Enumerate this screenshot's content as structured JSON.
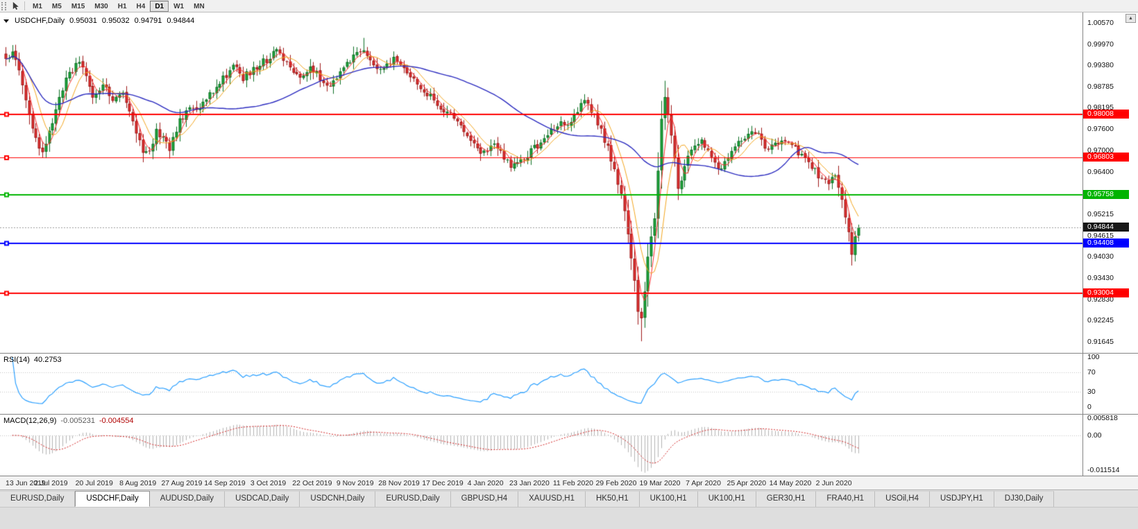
{
  "toolbar": {
    "timeframes": [
      {
        "label": "M1",
        "active": false
      },
      {
        "label": "M5",
        "active": false
      },
      {
        "label": "M15",
        "active": false
      },
      {
        "label": "M30",
        "active": false
      },
      {
        "label": "H1",
        "active": false
      },
      {
        "label": "H4",
        "active": false
      },
      {
        "label": "D1",
        "active": true
      },
      {
        "label": "W1",
        "active": false
      },
      {
        "label": "MN",
        "active": false
      }
    ]
  },
  "chart": {
    "title": {
      "symbol": "USDCHF,Daily",
      "open": "0.95031",
      "high": "0.95032",
      "low": "0.94791",
      "close": "0.94844"
    },
    "price_axis": {
      "labels": [
        "1.00570",
        "0.99970",
        "0.99380",
        "0.98785",
        "0.98195",
        "0.97600",
        "0.97000",
        "0.96400",
        "0.95810",
        "0.95215",
        "0.94615",
        "0.94030",
        "0.93430",
        "0.92830",
        "0.92245",
        "0.91645"
      ]
    },
    "hlines": [
      {
        "price": 0.98008,
        "label": "0.98008",
        "color": "#ff0000",
        "width": 2
      },
      {
        "price": 0.96803,
        "label": "0.96803",
        "color": "#ff0000",
        "width": 1
      },
      {
        "price": 0.95758,
        "label": "0.95758",
        "color": "#00b400",
        "width": 2
      },
      {
        "price": 0.94408,
        "label": "0.94408",
        "color": "#0000ff",
        "width": 2
      },
      {
        "price": 0.93004,
        "label": "0.93004",
        "color": "#ff0000",
        "width": 2
      }
    ],
    "current_price": {
      "value": 0.94844,
      "label": "0.94844",
      "bg": "#161616"
    }
  },
  "rsi": {
    "label": "RSI(14)",
    "value": "40.2753"
  },
  "macd": {
    "label": "MACD(12,26,9)",
    "value1": "-0.005231",
    "value2": "-0.004554"
  },
  "tabs": [
    {
      "label": "EURUSD,Daily",
      "active": false
    },
    {
      "label": "USDCHF,Daily",
      "active": true
    },
    {
      "label": "AUDUSD,Daily",
      "active": false
    },
    {
      "label": "USDCAD,Daily",
      "active": false
    },
    {
      "label": "USDCNH,Daily",
      "active": false
    },
    {
      "label": "EURUSD,Daily",
      "active": false
    },
    {
      "label": "GBPUSD,H4",
      "active": false
    },
    {
      "label": "XAUUSD,H1",
      "active": false
    },
    {
      "label": "HK50,H1",
      "active": false
    },
    {
      "label": "UK100,H1",
      "active": false
    },
    {
      "label": "UK100,H1",
      "active": false
    },
    {
      "label": "GER30,H1",
      "active": false
    },
    {
      "label": "FRA40,H1",
      "active": false
    },
    {
      "label": "USOil,H4",
      "active": false
    },
    {
      "label": "USDJPY,H1",
      "active": false
    },
    {
      "label": "DJ30,Daily",
      "active": false
    }
  ],
  "chart_data": {
    "type": "candlestick",
    "symbol": "USDCHF",
    "timeframe": "Daily",
    "ohlc_current": {
      "open": 0.95031,
      "high": 0.95032,
      "low": 0.94791,
      "close": 0.94844
    },
    "ylim": [
      0.91645,
      1.0057
    ],
    "num_candles": 256,
    "x_labels": [
      "13 Jun 2019",
      "2 Jul 2019",
      "20 Jul 2019",
      "8 Aug 2019",
      "27 Aug 2019",
      "14 Sep 2019",
      "3 Oct 2019",
      "22 Oct 2019",
      "9 Nov 2019",
      "28 Nov 2019",
      "17 Dec 2019",
      "4 Jan 2020",
      "23 Jan 2020",
      "11 Feb 2020",
      "29 Feb 2020",
      "19 Mar 2020",
      "7 Apr 2020",
      "25 Apr 2020",
      "14 May 2020",
      "2 Jun 2020"
    ],
    "x_label_every": 13,
    "close_keypoints": [
      [
        0,
        0.995
      ],
      [
        2,
        0.9985
      ],
      [
        4,
        0.993
      ],
      [
        7,
        0.98
      ],
      [
        9,
        0.9725
      ],
      [
        11,
        0.97
      ],
      [
        13,
        0.9745
      ],
      [
        16,
        0.985
      ],
      [
        19,
        0.992
      ],
      [
        22,
        0.9945
      ],
      [
        24,
        0.99
      ],
      [
        26,
        0.9855
      ],
      [
        29,
        0.9885
      ],
      [
        32,
        0.983
      ],
      [
        35,
        0.987
      ],
      [
        37,
        0.98
      ],
      [
        39,
        0.9745
      ],
      [
        41,
        0.97
      ],
      [
        43,
        0.969
      ],
      [
        45,
        0.9755
      ],
      [
        47,
        0.9735
      ],
      [
        49,
        0.97
      ],
      [
        52,
        0.9785
      ],
      [
        55,
        0.982
      ],
      [
        58,
        0.981
      ],
      [
        61,
        0.986
      ],
      [
        65,
        0.99
      ],
      [
        68,
        0.9935
      ],
      [
        71,
        0.9905
      ],
      [
        74,
        0.993
      ],
      [
        78,
        0.9955
      ],
      [
        81,
        0.9985
      ],
      [
        84,
        0.9945
      ],
      [
        87,
        0.9905
      ],
      [
        91,
        0.9935
      ],
      [
        94,
        0.99
      ],
      [
        97,
        0.987
      ],
      [
        100,
        0.9915
      ],
      [
        104,
        0.996
      ],
      [
        107,
        0.999
      ],
      [
        110,
        0.9945
      ],
      [
        113,
        0.9925
      ],
      [
        116,
        0.9965
      ],
      [
        119,
        0.994
      ],
      [
        122,
        0.99
      ],
      [
        126,
        0.986
      ],
      [
        130,
        0.982
      ],
      [
        134,
        0.979
      ],
      [
        137,
        0.975
      ],
      [
        140,
        0.971
      ],
      [
        143,
        0.969
      ],
      [
        146,
        0.972
      ],
      [
        149,
        0.9675
      ],
      [
        152,
        0.9655
      ],
      [
        156,
        0.969
      ],
      [
        159,
        0.9715
      ],
      [
        162,
        0.9745
      ],
      [
        165,
        0.9775
      ],
      [
        168,
        0.9765
      ],
      [
        171,
        0.981
      ],
      [
        173,
        0.984
      ],
      [
        176,
        0.9795
      ],
      [
        179,
        0.973
      ],
      [
        181,
        0.968
      ],
      [
        183,
        0.961
      ],
      [
        185,
        0.954
      ],
      [
        187,
        0.94
      ],
      [
        189,
        0.925
      ],
      [
        190,
        0.922
      ],
      [
        192,
        0.94
      ],
      [
        194,
        0.952
      ],
      [
        196,
        0.978
      ],
      [
        197,
        0.986
      ],
      [
        199,
        0.975
      ],
      [
        201,
        0.959
      ],
      [
        203,
        0.966
      ],
      [
        205,
        0.971
      ],
      [
        208,
        0.973
      ],
      [
        211,
        0.9675
      ],
      [
        214,
        0.965
      ],
      [
        217,
        0.9705
      ],
      [
        221,
        0.9735
      ],
      [
        224,
        0.9755
      ],
      [
        227,
        0.9705
      ],
      [
        230,
        0.9725
      ],
      [
        234,
        0.973
      ],
      [
        237,
        0.9695
      ],
      [
        240,
        0.967
      ],
      [
        243,
        0.9625
      ],
      [
        246,
        0.96
      ],
      [
        248,
        0.963
      ],
      [
        250,
        0.956
      ],
      [
        252,
        0.947
      ],
      [
        253,
        0.9405
      ],
      [
        254,
        0.9455
      ],
      [
        255,
        0.94844
      ]
    ],
    "spikes": [
      {
        "idx": 107,
        "high": 1.0015
      },
      {
        "idx": 190,
        "low": 0.9166
      },
      {
        "idx": 197,
        "high": 0.9895
      },
      {
        "idx": 253,
        "low": 0.9378
      }
    ],
    "noise": 0.0011,
    "wick": 0.0016,
    "seed": 20200612,
    "candle_colors": {
      "up": "#1fa83c",
      "up_border": "#0b6e22",
      "down": "#e03232",
      "down_border": "#9c1616"
    },
    "moving_averages": [
      {
        "window": 4,
        "color": "#ff2a2a",
        "width": 1
      },
      {
        "window": 8,
        "color": "#f2a41c",
        "width": 1
      },
      {
        "window": 45,
        "color": "#2b2bbf",
        "width": 1.4
      }
    ],
    "indicators": {
      "rsi": {
        "period": 14,
        "current": 40.2753,
        "levels": [
          "100",
          "70",
          "30",
          "0"
        ],
        "color": "#2a9fff"
      },
      "macd": {
        "fast": 12,
        "slow": 26,
        "signal": 9,
        "current_macd": -0.005231,
        "current_signal": -0.004554,
        "axis_labels": [
          "0.005818",
          "0.00",
          "-0.011514"
        ],
        "axis_max": 0.005818,
        "axis_min": -0.011514,
        "histogram_color": "#b2b2b2",
        "signal_color": "#d02020"
      }
    }
  }
}
